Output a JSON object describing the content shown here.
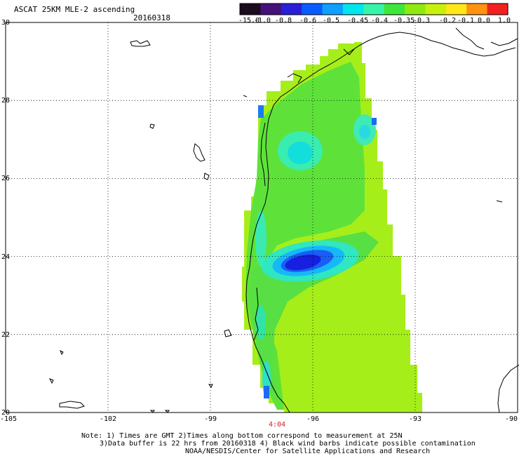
{
  "header": {
    "title": "ASCAT 25KM MLE-2 ascending",
    "date": "20160318"
  },
  "colorbar": {
    "labels": [
      "-15.0",
      "-1.0",
      "-0.8",
      "-0.6",
      "-0.5",
      "-0.45",
      "-0.4",
      "-0.35",
      "-0.3",
      "-0.2",
      "-0.1",
      "0.0",
      "1.0"
    ],
    "colors": [
      "#1a0b1e",
      "#45127a",
      "#2a1fd6",
      "#0a5cff",
      "#0f9fff",
      "#00e6ee",
      "#36f5a8",
      "#3ee63a",
      "#8fe90f",
      "#c8f00d",
      "#ffe81a",
      "#ff9210",
      "#f22020"
    ]
  },
  "map": {
    "lat_labels": [
      "30",
      "28",
      "26",
      "24",
      "22",
      "20"
    ],
    "lon_labels": [
      "-105",
      "-102",
      "-99",
      "-96",
      "-93",
      "-90"
    ],
    "lat_range": [
      20,
      30
    ],
    "lon_range": [
      -105,
      -90
    ],
    "pass_time": "4:04"
  },
  "notes": {
    "line1": "Note: 1) Times are GMT 2)Times along bottom correspond to measurement at 25N",
    "line2": "3)Data buffer is 22 hrs from 20160318 4) Black wind barbs indicate possible contamination",
    "line3": "NOAA/NESDIS/Center for Satellite Applications and Research"
  }
}
